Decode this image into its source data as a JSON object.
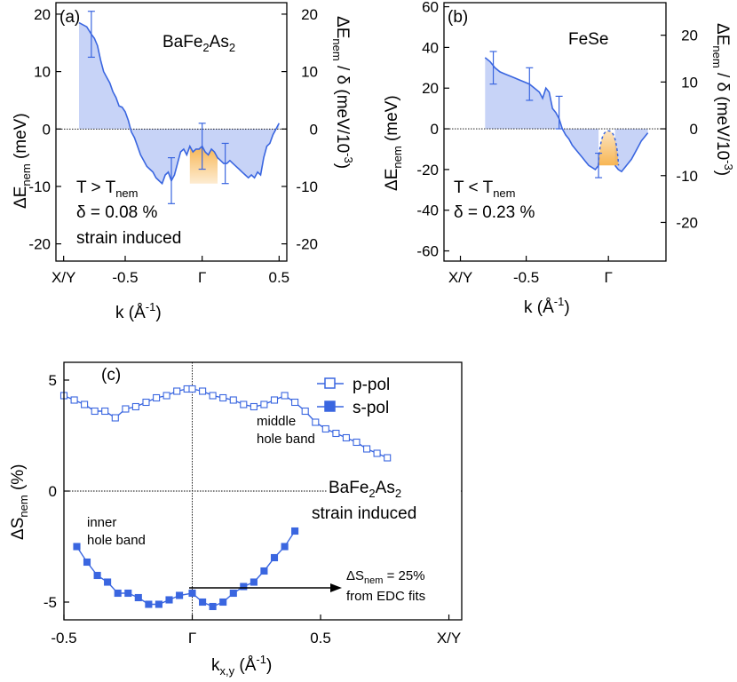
{
  "colors": {
    "line": "#3a66e0",
    "fill_blue": "#c7d3f7",
    "fill_orange": "#f7b24a",
    "axis": "#000000",
    "zero": "#000000"
  },
  "chart_data": [
    {
      "id": "a",
      "type": "area",
      "panel_label": "(a)",
      "material_main": "BaFe",
      "material_sub1": "2",
      "material_mid": "As",
      "material_sub2": "2",
      "condition_main": "T > T",
      "condition_sub": "nem",
      "delta": "δ = 0.08 %",
      "note": "strain induced",
      "xlabel": "k  (Å",
      "xlabel_sup": "-1",
      "xlabel_end": ")",
      "ylabel_left_main": "ΔE",
      "ylabel_left_sub": "nem",
      "ylabel_left_unit": " (meV)",
      "ylabel_right_main": "ΔE",
      "ylabel_right_sub": "nem",
      "ylabel_right_unit": " / δ  (meV/10",
      "ylabel_right_sup": "-3",
      "ylabel_right_end": ")",
      "xlim": [
        -0.95,
        0.55
      ],
      "ylim": [
        -23,
        22
      ],
      "x_ticks": [
        {
          "value": -0.9,
          "label": "X/Y"
        },
        {
          "value": -0.5,
          "label": "-0.5"
        },
        {
          "value": 0,
          "label": "Γ"
        },
        {
          "value": 0.5,
          "label": "0.5"
        }
      ],
      "y_ticks_left": [
        -20,
        -10,
        0,
        10,
        20
      ],
      "y_ticks_right": [
        {
          "value": 20,
          "label": "20"
        },
        {
          "value": 10,
          "label": "10"
        },
        {
          "value": 0,
          "label": "0"
        },
        {
          "value": -10,
          "label": "-10"
        },
        {
          "value": -20,
          "label": "-20"
        }
      ],
      "x": [
        -0.8,
        -0.75,
        -0.72,
        -0.7,
        -0.68,
        -0.66,
        -0.64,
        -0.62,
        -0.6,
        -0.58,
        -0.56,
        -0.54,
        -0.52,
        -0.5,
        -0.48,
        -0.46,
        -0.44,
        -0.42,
        -0.4,
        -0.38,
        -0.36,
        -0.34,
        -0.32,
        -0.3,
        -0.28,
        -0.26,
        -0.24,
        -0.22,
        -0.2,
        -0.18,
        -0.16,
        -0.14,
        -0.12,
        -0.1,
        -0.08,
        -0.06,
        -0.04,
        -0.02,
        0.0,
        0.02,
        0.04,
        0.06,
        0.08,
        0.1,
        0.12,
        0.14,
        0.16,
        0.18,
        0.2,
        0.22,
        0.24,
        0.26,
        0.28,
        0.3,
        0.32,
        0.34,
        0.36,
        0.38,
        0.4,
        0.42,
        0.44,
        0.46,
        0.48,
        0.5
      ],
      "y": [
        18.5,
        17.8,
        16.5,
        15.8,
        14.5,
        12.0,
        10.0,
        9.0,
        8.0,
        6.5,
        5.5,
        4.0,
        3.8,
        3.0,
        1.5,
        -0.5,
        -1.5,
        -3.0,
        -4.5,
        -5.5,
        -6.5,
        -7.0,
        -7.5,
        -8.5,
        -9.0,
        -9.5,
        -8.0,
        -7.5,
        -9.0,
        -8.0,
        -6.0,
        -4.0,
        -3.5,
        -4.5,
        -3.0,
        -4.0,
        -3.5,
        -3.5,
        -3.0,
        -4.0,
        -4.5,
        -3.5,
        -4.0,
        -5.0,
        -5.5,
        -6.0,
        -6.0,
        -5.5,
        -6.0,
        -6.5,
        -7.0,
        -7.5,
        -8.0,
        -8.5,
        -8.0,
        -8.5,
        -7.5,
        -8.0,
        -5.0,
        -3.0,
        -2.5,
        -1.0,
        0.0,
        1.0
      ],
      "orange_region": [
        -0.08,
        0.1
      ],
      "error_bars": [
        {
          "x": -0.72,
          "y": 16.5,
          "err": 4.0
        },
        {
          "x": -0.2,
          "y": -9.0,
          "err": 4.0
        },
        {
          "x": 0.0,
          "y": -3.0,
          "err": 4.0
        },
        {
          "x": 0.15,
          "y": -6.0,
          "err": 3.5
        }
      ]
    },
    {
      "id": "b",
      "type": "area",
      "panel_label": "(b)",
      "material": "FeSe",
      "condition_main": "T < T",
      "condition_sub": "nem",
      "delta": "δ = 0.23 %",
      "xlabel": "k  (Å",
      "xlabel_sup": "-1",
      "xlabel_end": ")",
      "ylabel_left_main": "ΔE",
      "ylabel_left_sub": "nem",
      "ylabel_left_unit": " (meV)",
      "ylabel_right_main": "ΔE",
      "ylabel_right_sub": "nem",
      "ylabel_right_unit": " / δ  (meV/10",
      "ylabel_right_sup": "-3",
      "ylabel_right_end": ")",
      "xlim": [
        -1.0,
        0.35
      ],
      "ylim": [
        -65,
        62
      ],
      "x_ticks": [
        {
          "value": -0.9,
          "label": "X/Y"
        },
        {
          "value": -0.5,
          "label": "-0.5"
        },
        {
          "value": 0,
          "label": "Γ"
        }
      ],
      "y_ticks_left": [
        -60,
        -40,
        -20,
        0,
        20,
        40,
        60
      ],
      "y_ticks_right": [
        {
          "value": 46,
          "label": "20"
        },
        {
          "value": 23,
          "label": "10"
        },
        {
          "value": 0,
          "label": "0"
        },
        {
          "value": -23,
          "label": "-10"
        },
        {
          "value": -46,
          "label": "-20"
        }
      ],
      "x": [
        -0.75,
        -0.72,
        -0.69,
        -0.66,
        -0.63,
        -0.6,
        -0.57,
        -0.54,
        -0.51,
        -0.48,
        -0.45,
        -0.42,
        -0.4,
        -0.38,
        -0.36,
        -0.34,
        -0.32,
        -0.3,
        -0.28,
        -0.26,
        -0.24,
        -0.22,
        -0.2,
        -0.18,
        -0.16,
        -0.14,
        -0.12,
        -0.1,
        -0.08,
        -0.06
      ],
      "y": [
        35,
        33,
        30,
        28,
        27,
        26,
        25,
        24,
        23,
        22,
        20,
        18,
        15,
        20,
        18,
        10,
        8,
        5,
        0,
        -3,
        -5,
        -8,
        -10,
        -12,
        -14,
        -16,
        -18,
        -19,
        -20,
        -18
      ],
      "x_right": [
        0.04,
        0.06,
        0.08,
        0.1,
        0.12,
        0.14,
        0.16,
        0.18,
        0.2,
        0.22,
        0.24
      ],
      "y_right": [
        -18,
        -20,
        -21,
        -19,
        -17,
        -15,
        -12,
        -9,
        -6,
        -4,
        -2
      ],
      "orange_region": [
        -0.04,
        0.04
      ],
      "error_bars": [
        {
          "x": -0.7,
          "y": 30,
          "err": 8
        },
        {
          "x": -0.48,
          "y": 22,
          "err": 8
        },
        {
          "x": -0.3,
          "y": 8,
          "err": 8
        },
        {
          "x": -0.06,
          "y": -18,
          "err": 6
        }
      ]
    },
    {
      "id": "c",
      "type": "line",
      "panel_label": "(c)",
      "material_main": "BaFe",
      "material_sub1": "2",
      "material_mid": "As",
      "material_sub2": "2",
      "note": "strain induced",
      "xlabel_main": "k",
      "xlabel_sub": "x,y",
      "xlabel_unit": " (Å",
      "xlabel_sup": "-1",
      "xlabel_end": ")",
      "ylabel_main": "ΔS",
      "ylabel_sub": "nem",
      "ylabel_unit": " (%)",
      "xlim": [
        -0.5,
        1.05
      ],
      "ylim": [
        -5.8,
        5.8
      ],
      "x_ticks": [
        {
          "value": -0.5,
          "label": "-0.5"
        },
        {
          "value": 0,
          "label": "Γ"
        },
        {
          "value": 0.5,
          "label": "0.5"
        },
        {
          "value": 1.0,
          "label": "X/Y"
        }
      ],
      "y_ticks": [
        -5,
        0,
        5
      ],
      "legend": {
        "position": "top-right",
        "p_label": "p-pol",
        "s_label": "s-pol"
      },
      "annot_middle_1": "middle",
      "annot_middle_2": "hole band",
      "annot_inner_1": "inner",
      "annot_inner_2": "hole band",
      "annot_arrow_main": "ΔS",
      "annot_arrow_sub": "nem",
      "annot_arrow_val": " = 25%",
      "annot_arrow_2": "from EDC fits",
      "series": [
        {
          "name": "p-pol",
          "marker": "open-square",
          "x": [
            -0.5,
            -0.46,
            -0.42,
            -0.38,
            -0.34,
            -0.3,
            -0.26,
            -0.22,
            -0.18,
            -0.14,
            -0.1,
            -0.06,
            -0.02,
            0.0,
            0.04,
            0.08,
            0.12,
            0.16,
            0.2,
            0.24,
            0.28,
            0.32,
            0.36,
            0.4,
            0.44,
            0.48,
            0.52,
            0.56,
            0.6,
            0.64,
            0.68,
            0.72,
            0.76
          ],
          "y": [
            4.3,
            4.1,
            3.9,
            3.6,
            3.6,
            3.3,
            3.7,
            3.8,
            4.0,
            4.2,
            4.3,
            4.5,
            4.6,
            4.6,
            4.5,
            4.3,
            4.2,
            4.1,
            3.9,
            3.8,
            3.9,
            4.1,
            4.3,
            4.0,
            3.6,
            3.1,
            2.8,
            2.6,
            2.4,
            2.2,
            1.9,
            1.7,
            1.5
          ]
        },
        {
          "name": "s-pol",
          "marker": "filled-square",
          "x": [
            -0.45,
            -0.41,
            -0.37,
            -0.33,
            -0.29,
            -0.25,
            -0.21,
            -0.17,
            -0.13,
            -0.09,
            -0.05,
            0.0,
            0.04,
            0.08,
            0.12,
            0.16,
            0.2,
            0.24,
            0.28,
            0.32,
            0.36,
            0.4
          ],
          "y": [
            -2.5,
            -3.2,
            -3.8,
            -4.1,
            -4.6,
            -4.6,
            -4.8,
            -5.1,
            -5.1,
            -4.9,
            -4.7,
            -4.6,
            -5.0,
            -5.2,
            -5.0,
            -4.6,
            -4.3,
            -4.1,
            -3.6,
            -3.0,
            -2.5,
            -1.8
          ]
        }
      ]
    }
  ]
}
